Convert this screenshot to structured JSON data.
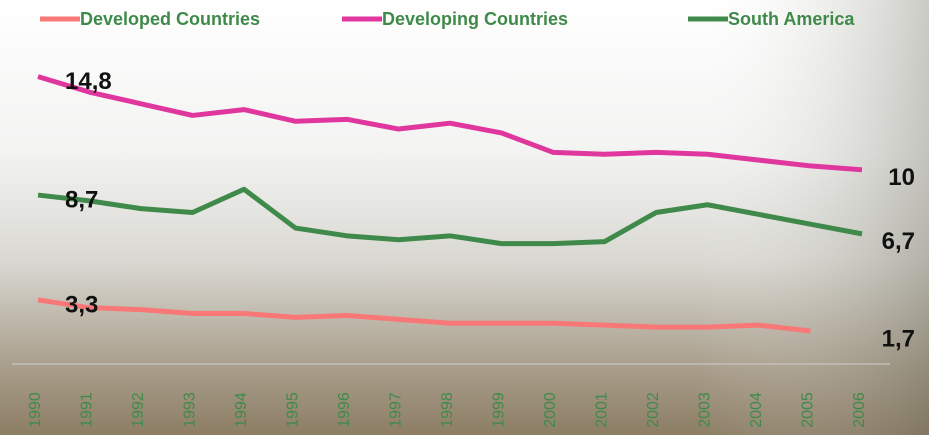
{
  "chart_data": {
    "type": "line",
    "categories": [
      "1990",
      "1991",
      "1992",
      "1993",
      "1994",
      "1995",
      "1996",
      "1997",
      "1998",
      "1999",
      "2000",
      "2001",
      "2002",
      "2003",
      "2004",
      "2005",
      "2006"
    ],
    "series": [
      {
        "name": "Developed Countries",
        "color": "#f87878",
        "values": [
          3.3,
          2.9,
          2.8,
          2.6,
          2.6,
          2.4,
          2.5,
          2.3,
          2.1,
          2.1,
          2.1,
          2.0,
          1.9,
          1.9,
          2.0,
          1.7,
          null
        ],
        "value_labels": [
          "3,3",
          null,
          null,
          null,
          null,
          null,
          null,
          null,
          null,
          null,
          null,
          null,
          null,
          null,
          null,
          "1,7",
          null
        ]
      },
      {
        "name": "Developing Countries",
        "color": "#e0379f",
        "values": [
          14.8,
          14.0,
          13.4,
          12.8,
          13.1,
          12.5,
          12.6,
          12.1,
          12.4,
          11.9,
          10.9,
          10.8,
          10.9,
          10.8,
          10.5,
          10.2,
          10
        ],
        "value_labels": [
          "14,8",
          null,
          null,
          null,
          null,
          null,
          null,
          null,
          null,
          null,
          null,
          null,
          null,
          null,
          null,
          null,
          "10"
        ]
      },
      {
        "name": "South America",
        "color": "#3f8a4a",
        "values": [
          8.7,
          8.4,
          8.0,
          7.8,
          9.0,
          7.0,
          6.6,
          6.4,
          6.6,
          6.2,
          6.2,
          6.3,
          7.8,
          8.2,
          7.7,
          7.2,
          6.7
        ],
        "value_labels": [
          "8,7",
          null,
          null,
          null,
          null,
          null,
          null,
          null,
          null,
          null,
          null,
          null,
          null,
          null,
          null,
          null,
          "6,7"
        ]
      }
    ],
    "ylim": [
      0,
      15.5
    ],
    "legend": "top"
  }
}
